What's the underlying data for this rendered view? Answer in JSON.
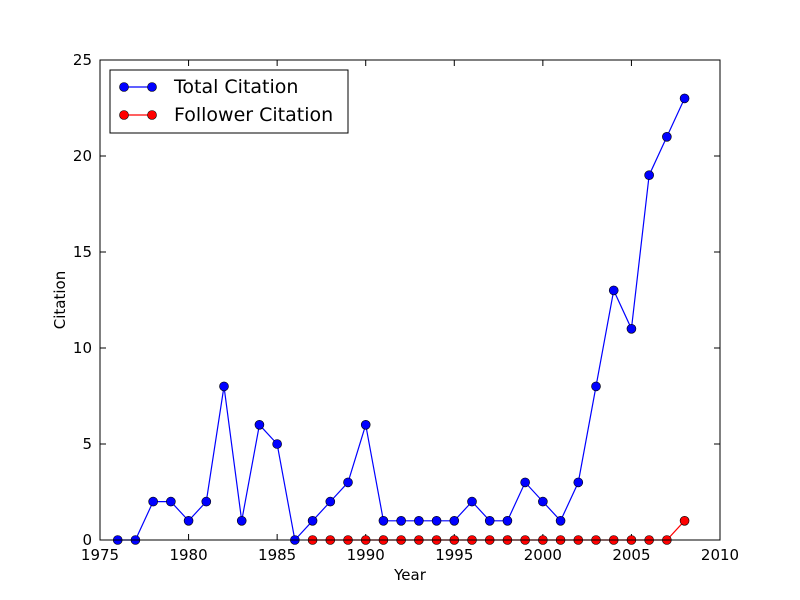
{
  "chart_data": {
    "type": "line",
    "title": "",
    "xlabel": "Year",
    "ylabel": "Citation",
    "xlim": [
      1975,
      2010
    ],
    "ylim": [
      0,
      25
    ],
    "xticks": [
      1975,
      1980,
      1985,
      1990,
      1995,
      2000,
      2005,
      2010
    ],
    "yticks": [
      0,
      5,
      10,
      15,
      20,
      25
    ],
    "grid": false,
    "legend_position": "top-left",
    "series": [
      {
        "name": "Total Citation",
        "color": "#0000ff",
        "x": [
          1976,
          1977,
          1978,
          1979,
          1980,
          1981,
          1982,
          1983,
          1984,
          1985,
          1986,
          1987,
          1988,
          1989,
          1990,
          1991,
          1992,
          1993,
          1994,
          1995,
          1996,
          1997,
          1998,
          1999,
          2000,
          2001,
          2002,
          2003,
          2004,
          2005,
          2006,
          2007,
          2008
        ],
        "values": [
          0,
          0,
          2,
          2,
          1,
          2,
          8,
          1,
          6,
          5,
          0,
          1,
          2,
          3,
          6,
          1,
          1,
          1,
          1,
          1,
          2,
          1,
          1,
          3,
          2,
          1,
          3,
          8,
          13,
          11,
          19,
          21,
          23
        ]
      },
      {
        "name": "Follower Citation",
        "color": "#ff0000",
        "x": [
          1987,
          1988,
          1989,
          1990,
          1991,
          1992,
          1993,
          1994,
          1995,
          1996,
          1997,
          1998,
          1999,
          2000,
          2001,
          2002,
          2003,
          2004,
          2005,
          2006,
          2007,
          2008
        ],
        "values": [
          0,
          0,
          0,
          0,
          0,
          0,
          0,
          0,
          0,
          0,
          0,
          0,
          0,
          0,
          0,
          0,
          0,
          0,
          0,
          0,
          0,
          1
        ]
      }
    ]
  }
}
